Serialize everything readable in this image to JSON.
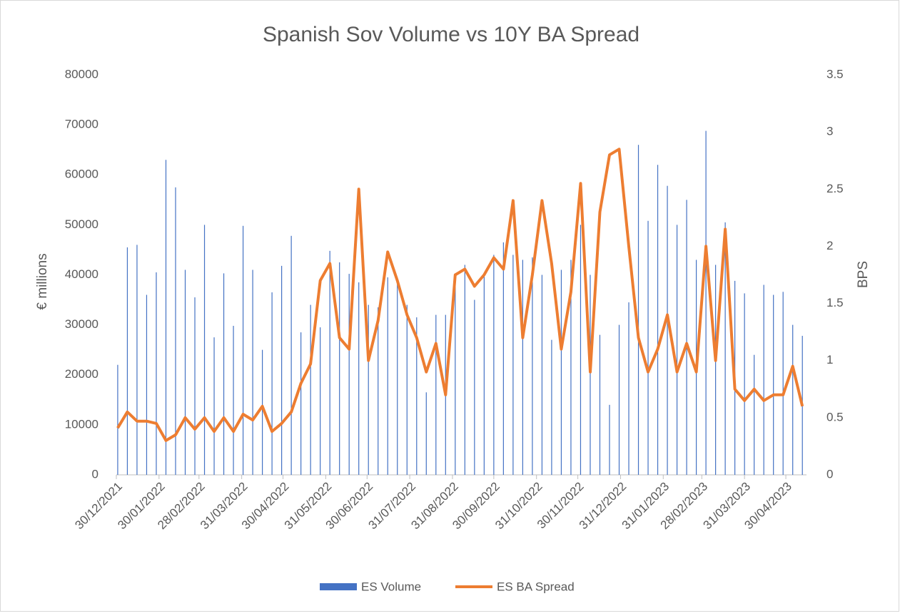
{
  "chart_data": {
    "type": "bar-line",
    "title": "Spanish Sov Volume vs 10Y BA Spread",
    "y_label": "€ millions",
    "y2_label": "BPS",
    "x": [
      "31/12/2021",
      "07/01/2022",
      "14/01/2022",
      "21/01/2022",
      "28/01/2022",
      "04/02/2022",
      "11/02/2022",
      "18/02/2022",
      "25/02/2022",
      "04/03/2022",
      "11/03/2022",
      "18/03/2022",
      "25/03/2022",
      "01/04/2022",
      "08/04/2022",
      "15/04/2022",
      "22/04/2022",
      "29/04/2022",
      "06/05/2022",
      "13/05/2022",
      "20/05/2022",
      "27/05/2022",
      "03/06/2022",
      "10/06/2022",
      "17/06/2022",
      "24/06/2022",
      "01/07/2022",
      "08/07/2022",
      "15/07/2022",
      "22/07/2022",
      "29/07/2022",
      "05/08/2022",
      "12/08/2022",
      "19/08/2022",
      "26/08/2022",
      "02/09/2022",
      "09/09/2022",
      "16/09/2022",
      "23/09/2022",
      "30/09/2022",
      "07/10/2022",
      "14/10/2022",
      "21/10/2022",
      "28/10/2022",
      "04/11/2022",
      "11/11/2022",
      "18/11/2022",
      "25/11/2022",
      "02/12/2022",
      "09/12/2022",
      "16/12/2022",
      "23/12/2022",
      "30/12/2022",
      "06/01/2023",
      "13/01/2023",
      "20/01/2023",
      "27/01/2023",
      "03/02/2023",
      "10/02/2023",
      "17/02/2023",
      "24/02/2023",
      "03/03/2023",
      "10/03/2023",
      "17/03/2023",
      "24/03/2023",
      "31/03/2023",
      "07/04/2023",
      "14/04/2023",
      "21/04/2023",
      "28/04/2023",
      "05/05/2023",
      "12/05/2023"
    ],
    "series": [
      {
        "name": "ES Volume",
        "kind": "bar",
        "color": "#4472c4",
        "axis": "y",
        "values": [
          22000,
          45500,
          46000,
          36000,
          40500,
          63000,
          57500,
          41000,
          35500,
          50000,
          27500,
          40300,
          29800,
          49800,
          41000,
          25000,
          36500,
          41800,
          47800,
          28500,
          34000,
          29500,
          44800,
          42500,
          40200,
          38500,
          34000,
          33500,
          39500,
          39500,
          34000,
          31500,
          16500,
          32000,
          32000,
          40000,
          42000,
          35000,
          40000,
          44000,
          46500,
          44000,
          43000,
          43500,
          40000,
          27000,
          41000,
          43000,
          50000,
          40000,
          28000,
          14000,
          30000,
          34500,
          66000,
          50800,
          62000,
          57800,
          50000,
          55000,
          43000,
          68800,
          42000,
          50500,
          38800,
          36300,
          24000,
          38000,
          36000,
          36600,
          30000,
          27800
        ]
      },
      {
        "name": "ES BA Spread",
        "kind": "line",
        "color": "#ed7d31",
        "axis": "y2",
        "values": [
          0.41,
          0.55,
          0.47,
          0.47,
          0.45,
          0.3,
          0.35,
          0.5,
          0.4,
          0.5,
          0.38,
          0.5,
          0.38,
          0.53,
          0.48,
          0.6,
          0.38,
          0.45,
          0.55,
          0.8,
          0.97,
          1.7,
          1.85,
          1.2,
          1.1,
          2.5,
          1.0,
          1.35,
          1.95,
          1.7,
          1.4,
          1.2,
          0.9,
          1.15,
          0.7,
          1.75,
          1.8,
          1.65,
          1.75,
          1.9,
          1.8,
          2.4,
          1.2,
          1.75,
          2.4,
          1.85,
          1.1,
          1.6,
          2.55,
          0.9,
          2.3,
          2.8,
          2.85,
          2.0,
          1.2,
          0.9,
          1.1,
          1.4,
          0.9,
          1.15,
          0.9,
          2.0,
          1.0,
          2.15,
          0.75,
          0.65,
          0.75,
          0.65,
          0.7,
          0.7,
          0.95,
          0.6
        ]
      }
    ],
    "xlim": [
      "30/12/2021",
      "15/05/2023"
    ],
    "xticks": [
      "30/12/2021",
      "30/01/2022",
      "28/02/2022",
      "31/03/2022",
      "30/04/2022",
      "31/05/2022",
      "30/06/2022",
      "31/07/2022",
      "31/08/2022",
      "30/09/2022",
      "31/10/2022",
      "30/11/2022",
      "31/12/2022",
      "31/01/2023",
      "28/02/2023",
      "31/03/2023",
      "30/04/2023"
    ],
    "ylim": [
      0,
      80000
    ],
    "yticks": [
      0,
      10000,
      20000,
      30000,
      40000,
      50000,
      60000,
      70000,
      80000
    ],
    "y2lim": [
      0,
      3.5
    ],
    "y2ticks": [
      0,
      0.5,
      1,
      1.5,
      2,
      2.5,
      3,
      3.5
    ],
    "legend": "bottom"
  }
}
